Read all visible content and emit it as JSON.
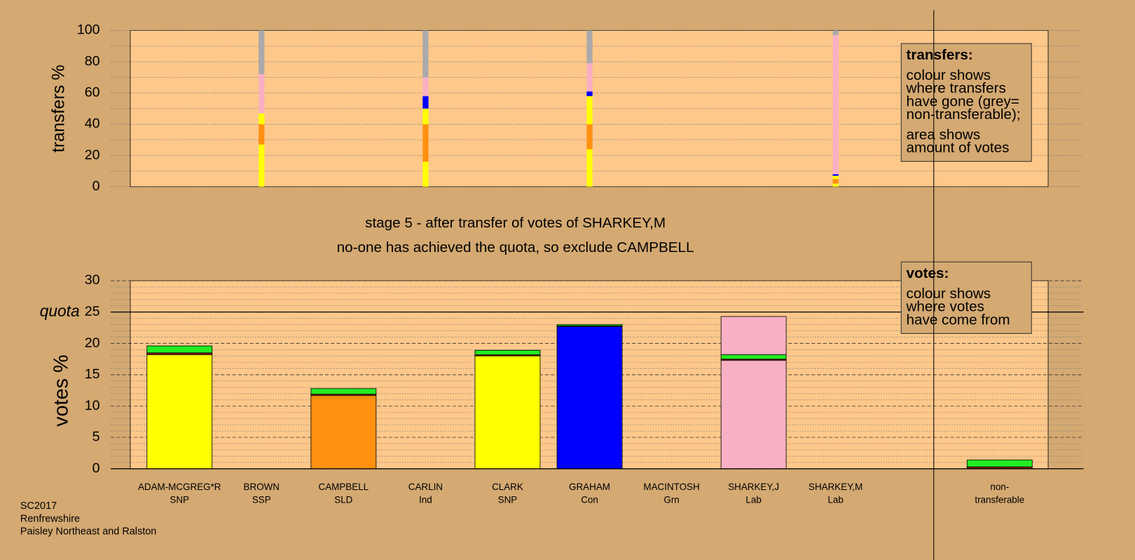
{
  "chart_data": [
    {
      "type": "stacked-bar",
      "ylabel": "transfers %",
      "ylim": [
        0,
        100
      ],
      "yticks": [
        0,
        20,
        40,
        60,
        80,
        100
      ],
      "minor_yticks": [
        10,
        30,
        50,
        70,
        90
      ],
      "series": [
        {
          "color": "#ffff00",
          "values": [
            null,
            27,
            null,
            16,
            null,
            24,
            null,
            null,
            2,
            null
          ]
        },
        {
          "color": "#ff9010",
          "values": [
            null,
            13,
            null,
            24,
            null,
            16,
            null,
            null,
            3,
            null
          ]
        },
        {
          "color": "#ffff00",
          "values": [
            null,
            7,
            null,
            10,
            null,
            18,
            null,
            null,
            2,
            null
          ]
        },
        {
          "color": "#0000ff",
          "values": [
            null,
            null,
            null,
            8,
            null,
            3,
            null,
            null,
            1,
            null
          ]
        },
        {
          "color": "#f8b0c4",
          "values": [
            null,
            25,
            null,
            12,
            null,
            18,
            null,
            null,
            89,
            null
          ]
        },
        {
          "color": "#aaaaaa",
          "values": [
            null,
            28,
            null,
            30,
            null,
            21,
            null,
            null,
            3,
            null
          ]
        }
      ],
      "note": {
        "heading": "transfers:",
        "paragraphs": [
          [
            "colour shows",
            "where transfers",
            "have gone (grey=",
            "non-transferable);"
          ],
          [
            "area shows",
            "amount of votes"
          ]
        ]
      }
    },
    {
      "type": "stacked-bar",
      "title": "stage 5 - after transfer of votes of SHARKEY,M",
      "subtitle": "no-one has achieved the quota, so exclude CAMPBELL",
      "ylabel": "votes %",
      "ylim": [
        0,
        30
      ],
      "yticks": [
        0,
        5,
        10,
        15,
        20,
        25,
        30
      ],
      "minor_yticks": [
        1,
        2,
        3,
        4,
        6,
        7,
        8,
        9,
        11,
        12,
        13,
        14,
        16,
        17,
        18,
        19,
        21,
        22,
        23,
        24,
        26,
        27,
        28,
        29
      ],
      "quota": {
        "label": "quota",
        "value": 25
      },
      "categories": [
        "ADAM-MCGREG*R",
        "BROWN",
        "CAMPBELL",
        "CARLIN",
        "CLARK",
        "GRAHAM",
        "MACINTOSH",
        "SHARKEY,J",
        "SHARKEY,M",
        "non-"
      ],
      "sublabels": [
        "SNP",
        "SSP",
        "SLD",
        "Ind",
        "SNP",
        "Con",
        "Grn",
        "Lab",
        "Lab",
        "transferable"
      ],
      "series": [
        {
          "colors": [
            "#ffff00",
            null,
            "#ff9010",
            null,
            "#ffff00",
            "#0000ff",
            null,
            "#f8b0c4",
            null,
            null
          ],
          "values": [
            18.2,
            null,
            11.7,
            null,
            18.0,
            22.7,
            null,
            17.3,
            null,
            null
          ]
        },
        {
          "color": "#8b1a1a",
          "values": [
            0.3,
            null,
            0.2,
            null,
            0.2,
            0.1,
            null,
            0.2,
            null,
            0.3
          ]
        },
        {
          "color": "#22ee22",
          "values": [
            1.1,
            null,
            0.9,
            null,
            0.7,
            0.2,
            null,
            0.7,
            null,
            1.1
          ]
        },
        {
          "color": "#f8b0c4",
          "values": [
            null,
            null,
            null,
            null,
            null,
            null,
            null,
            6.1,
            null,
            null
          ]
        }
      ],
      "note": {
        "heading": "votes:",
        "paragraphs": [
          [
            "colour shows",
            "where votes",
            "have come from"
          ]
        ]
      }
    }
  ],
  "footer": [
    "SC2017",
    "Renfrewshire",
    "Paisley Northeast and Ralston"
  ]
}
